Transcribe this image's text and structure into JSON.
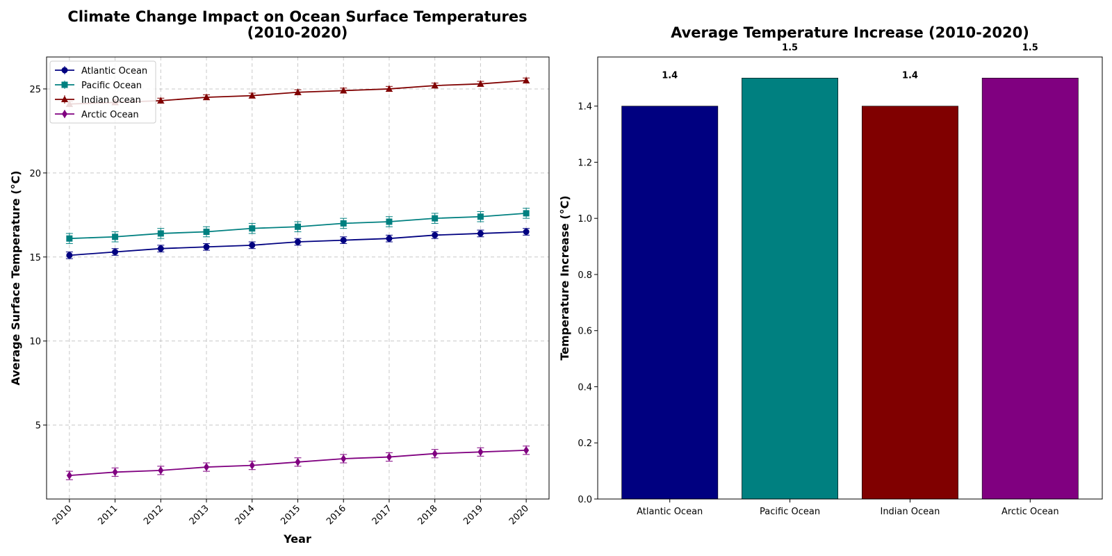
{
  "chart_data": [
    {
      "type": "line",
      "title_line1": "Climate Change Impact on Ocean Surface Temperatures",
      "title_line2": "(2010-2020)",
      "xlabel": "Year",
      "ylabel": "Average Surface Temperature (°C)",
      "x": [
        2010,
        2011,
        2012,
        2013,
        2014,
        2015,
        2016,
        2017,
        2018,
        2019,
        2020
      ],
      "x_ticks": [
        "2010",
        "2011",
        "2012",
        "2013",
        "2014",
        "2015",
        "2016",
        "2017",
        "2018",
        "2019",
        "2020"
      ],
      "y_ticks": [
        "5",
        "10",
        "15",
        "20",
        "25"
      ],
      "ylim": [
        0.6,
        26.9
      ],
      "grid": true,
      "legend_position": "upper-left",
      "error_bars": true,
      "series": [
        {
          "name": "Atlantic Ocean",
          "color": "#000080",
          "marker": "circle",
          "values": [
            15.1,
            15.3,
            15.5,
            15.6,
            15.7,
            15.9,
            16.0,
            16.1,
            16.3,
            16.4,
            16.5
          ],
          "error": [
            0.2,
            0.2,
            0.2,
            0.2,
            0.2,
            0.2,
            0.2,
            0.2,
            0.2,
            0.2,
            0.2
          ]
        },
        {
          "name": "Pacific Ocean",
          "color": "#008080",
          "marker": "square",
          "values": [
            16.1,
            16.2,
            16.4,
            16.5,
            16.7,
            16.8,
            17.0,
            17.1,
            17.3,
            17.4,
            17.6
          ],
          "error": [
            0.3,
            0.3,
            0.3,
            0.3,
            0.3,
            0.3,
            0.3,
            0.3,
            0.3,
            0.3,
            0.3
          ]
        },
        {
          "name": "Indian Ocean",
          "color": "#800000",
          "marker": "triangle",
          "values": [
            24.1,
            24.2,
            24.3,
            24.5,
            24.6,
            24.8,
            24.9,
            25.0,
            25.2,
            25.3,
            25.5
          ],
          "error": [
            0.15,
            0.15,
            0.15,
            0.15,
            0.15,
            0.15,
            0.15,
            0.15,
            0.15,
            0.15,
            0.15
          ]
        },
        {
          "name": "Arctic Ocean",
          "color": "#800080",
          "marker": "diamond",
          "values": [
            2.0,
            2.2,
            2.3,
            2.5,
            2.6,
            2.8,
            3.0,
            3.1,
            3.3,
            3.4,
            3.5
          ],
          "error": [
            0.25,
            0.25,
            0.25,
            0.25,
            0.25,
            0.25,
            0.25,
            0.25,
            0.25,
            0.25,
            0.25
          ]
        }
      ]
    },
    {
      "type": "bar",
      "title": "Average Temperature Increase (2010-2020)",
      "xlabel": "",
      "ylabel": "Temperature Increase (°C)",
      "categories": [
        "Atlantic Ocean",
        "Pacific Ocean",
        "Indian Ocean",
        "Arctic Ocean"
      ],
      "values": [
        1.4,
        1.5,
        1.4,
        1.5
      ],
      "data_labels": [
        "1.4",
        "1.5",
        "1.4",
        "1.5"
      ],
      "colors": [
        "#000080",
        "#008080",
        "#800000",
        "#800080"
      ],
      "y_ticks": [
        "0.0",
        "0.2",
        "0.4",
        "0.6",
        "0.8",
        "1.0",
        "1.2",
        "1.4"
      ],
      "ylim": [
        0,
        1.575
      ],
      "grid": false
    }
  ]
}
